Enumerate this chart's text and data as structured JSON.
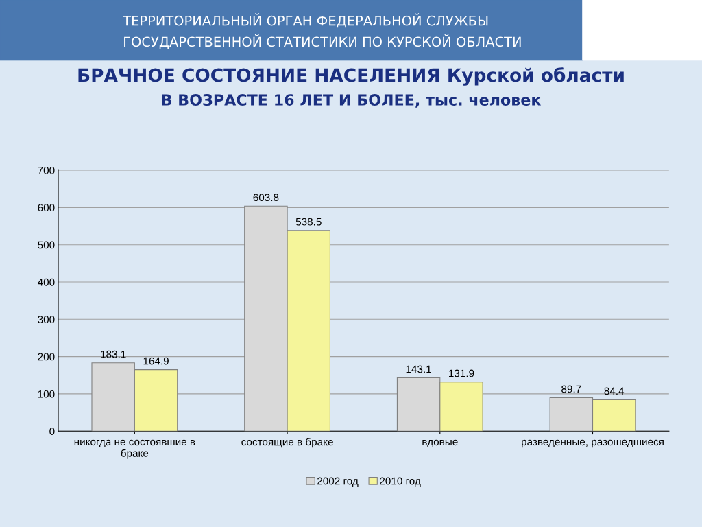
{
  "chart_data": {
    "type": "bar",
    "title": "БРАЧНОЕ СОСТОЯНИЕ НАСЕЛЕНИЯ Курской области",
    "subtitle": "В ВОЗРАСТЕ 16 ЛЕТ И БОЛЕЕ, тыс. человек",
    "annotations": [
      "ТЕРРИТОРИАЛЬНЫЙ ОРГАН ФЕДЕРАЛЬНОЙ СЛУЖБЫ",
      "ГОСУДАРСТВЕННОЙ СТАТИСТИКИ ПО КУРСКОЙ ОБЛАСТИ"
    ],
    "categories": [
      "никогда не состоявшие в браке",
      "состоящие в браке",
      "вдовые",
      "разведенные, разошедшиеся"
    ],
    "series": [
      {
        "name": "2002 год",
        "color": "#d9d9d9",
        "values": [
          183.1,
          603.8,
          143.1,
          89.7
        ]
      },
      {
        "name": "2010 год",
        "color": "#f5f59a",
        "values": [
          164.9,
          538.5,
          131.9,
          84.4
        ]
      }
    ],
    "ylim": [
      0,
      700
    ],
    "yticks": [
      0,
      100,
      200,
      300,
      400,
      500,
      600,
      700
    ],
    "grid": "y",
    "legend": "bottom",
    "data_labels": true
  }
}
